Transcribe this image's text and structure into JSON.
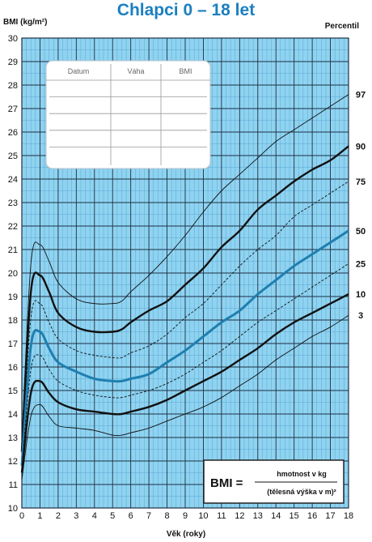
{
  "chart_data": {
    "type": "line",
    "title": "Chlapci 0 – 18 let",
    "ylabel": "BMI (kg/m²)",
    "xlabel": "Věk (roky)",
    "percentile_label": "Percentil",
    "xlim": [
      0,
      18
    ],
    "ylim": [
      10,
      30
    ],
    "x_ticks": [
      0,
      1,
      2,
      3,
      4,
      5,
      6,
      7,
      8,
      9,
      10,
      11,
      12,
      13,
      14,
      15,
      16,
      17,
      18
    ],
    "y_ticks": [
      10,
      11,
      12,
      13,
      14,
      15,
      16,
      17,
      18,
      19,
      20,
      21,
      22,
      23,
      24,
      25,
      26,
      27,
      28,
      29,
      30
    ],
    "x": [
      0,
      0.5,
      1,
      1.5,
      2,
      3,
      4,
      5,
      5.5,
      6,
      7,
      8,
      9,
      10,
      11,
      12,
      13,
      14,
      15,
      16,
      17,
      18
    ],
    "series": [
      {
        "name": "97",
        "style": "thin",
        "values": [
          12.8,
          20.4,
          21.2,
          20.5,
          19.6,
          18.9,
          18.7,
          18.7,
          18.8,
          19.2,
          19.9,
          20.7,
          21.6,
          22.6,
          23.5,
          24.2,
          24.9,
          25.6,
          26.1,
          26.6,
          27.1,
          27.6
        ]
      },
      {
        "name": "90",
        "style": "bold",
        "values": [
          12.4,
          19.2,
          19.9,
          19.2,
          18.3,
          17.7,
          17.5,
          17.5,
          17.6,
          17.9,
          18.4,
          18.8,
          19.5,
          20.2,
          21.1,
          21.8,
          22.7,
          23.3,
          23.9,
          24.4,
          24.8,
          25.4
        ]
      },
      {
        "name": "75",
        "style": "dashed",
        "values": [
          12.1,
          18.1,
          18.7,
          17.9,
          17.2,
          16.7,
          16.5,
          16.4,
          16.4,
          16.6,
          16.9,
          17.4,
          18.1,
          18.7,
          19.5,
          20.3,
          21.0,
          21.6,
          22.4,
          22.9,
          23.4,
          23.9
        ]
      },
      {
        "name": "50",
        "style": "blue",
        "values": [
          11.8,
          16.9,
          17.5,
          16.8,
          16.2,
          15.8,
          15.5,
          15.4,
          15.4,
          15.5,
          15.7,
          16.2,
          16.7,
          17.3,
          17.9,
          18.4,
          19.1,
          19.7,
          20.3,
          20.8,
          21.3,
          21.8
        ]
      },
      {
        "name": "25",
        "style": "dashed",
        "values": [
          11.6,
          15.9,
          16.5,
          15.9,
          15.4,
          15.0,
          14.8,
          14.7,
          14.7,
          14.8,
          15.0,
          15.3,
          15.7,
          16.2,
          16.7,
          17.3,
          17.9,
          18.4,
          18.9,
          19.4,
          19.9,
          20.4
        ]
      },
      {
        "name": "10",
        "style": "bold",
        "values": [
          11.5,
          14.9,
          15.4,
          14.9,
          14.5,
          14.2,
          14.1,
          14.0,
          14.0,
          14.1,
          14.3,
          14.6,
          15.0,
          15.4,
          15.8,
          16.3,
          16.8,
          17.4,
          17.9,
          18.3,
          18.7,
          19.1
        ]
      },
      {
        "name": "3",
        "style": "thin",
        "values": [
          11.2,
          13.9,
          14.4,
          13.9,
          13.5,
          13.4,
          13.3,
          13.1,
          13.1,
          13.2,
          13.4,
          13.7,
          14.0,
          14.3,
          14.7,
          15.2,
          15.7,
          16.3,
          16.8,
          17.3,
          17.7,
          18.2
        ]
      }
    ],
    "grid": true
  },
  "table": {
    "headers": [
      "Datum",
      "Váha",
      "BMI"
    ],
    "row_count": 5
  },
  "formula": {
    "lhs": "BMI =",
    "numerator": "hmotnost v kg",
    "denominator": "(tělesná výška v m)²"
  },
  "colors": {
    "background": "#8fd3f0",
    "grid_minor": "#5aa7d3",
    "grid_major": "#1f2f45",
    "title": "#1c7fc0",
    "p50": "#1f7fb0"
  }
}
